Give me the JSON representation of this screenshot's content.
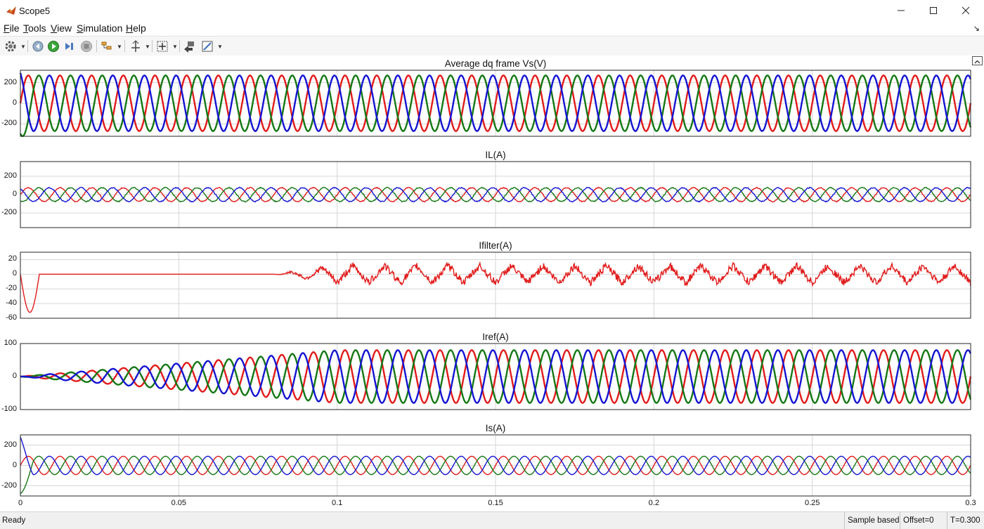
{
  "window": {
    "title": "Scope5"
  },
  "menu": [
    {
      "u": "F",
      "rest": "ile"
    },
    {
      "u": "T",
      "rest": "ools"
    },
    {
      "u": "V",
      "rest": "iew"
    },
    {
      "u": "S",
      "rest": "imulation"
    },
    {
      "u": "H",
      "rest": "elp"
    }
  ],
  "toolbar": {
    "icons": [
      "settings-icon",
      "step-back-icon",
      "run-icon",
      "step-forward-icon",
      "stop-icon",
      "highlight-icon",
      "cursor-measure-icon",
      "zoom-fit-icon",
      "bring-to-front-icon",
      "style-icon"
    ]
  },
  "axes": [
    {
      "title": "Average dq frame    Vs(V)",
      "yticks": [
        "200",
        "0",
        "-200"
      ],
      "ylim": [
        -320,
        320
      ],
      "tickvals": [
        200,
        0,
        -200
      ]
    },
    {
      "title": "IL(A)",
      "yticks": [
        "200",
        "0",
        "-200"
      ],
      "ylim": [
        -360,
        360
      ],
      "tickvals": [
        200,
        0,
        -200
      ]
    },
    {
      "title": "Ifilter(A)",
      "yticks": [
        "20",
        "0",
        "-20",
        "-40",
        "-60"
      ],
      "ylim": [
        -60,
        30
      ],
      "tickvals": [
        20,
        0,
        -20,
        -40,
        -60
      ]
    },
    {
      "title": "Iref(A)",
      "yticks": [
        "100",
        "0",
        "-100"
      ],
      "ylim": [
        -100,
        100
      ],
      "tickvals": [
        100,
        0,
        -100
      ]
    },
    {
      "title": "Is(A)",
      "yticks": [
        "200",
        "0",
        "-200"
      ],
      "ylim": [
        -300,
        300
      ],
      "tickvals": [
        200,
        0,
        -200
      ]
    }
  ],
  "xaxis": {
    "ticks": [
      "0",
      "0.05",
      "0.1",
      "0.15",
      "0.2",
      "0.25",
      "0.3"
    ],
    "tickvals": [
      0,
      0.05,
      0.1,
      0.15,
      0.2,
      0.25,
      0.3
    ],
    "xlim": [
      0,
      0.3
    ]
  },
  "chart_data": [
    {
      "type": "line",
      "title": "Average dq frame    Vs(V)",
      "x_range": [
        0,
        0.3
      ],
      "ylim": [
        -320,
        320
      ],
      "series": [
        {
          "color": "#e11b1b",
          "amplitude": 270,
          "frequency_hz": 100,
          "phase_deg": 0
        },
        {
          "color": "#147814",
          "amplitude": 270,
          "frequency_hz": 100,
          "phase_deg": -120
        },
        {
          "color": "#1414d2",
          "amplitude": 270,
          "frequency_hz": 100,
          "phase_deg": 120
        }
      ]
    },
    {
      "type": "line",
      "title": "IL(A)",
      "x_range": [
        0,
        0.3
      ],
      "ylim": [
        -360,
        360
      ],
      "series": [
        {
          "color": "#e11b1b",
          "amplitude": 75,
          "frequency_hz": 100,
          "phase_deg": 0
        },
        {
          "color": "#147814",
          "amplitude": 75,
          "frequency_hz": 100,
          "phase_deg": -120
        },
        {
          "color": "#1414d2",
          "amplitude": 75,
          "frequency_hz": 100,
          "phase_deg": 120
        }
      ]
    },
    {
      "type": "line",
      "title": "Ifilter(A)",
      "x_range": [
        0,
        0.3
      ],
      "ylim": [
        -60,
        30
      ],
      "series": [
        {
          "color": "#e11b1b",
          "transient_min": -52,
          "active_from_x": 0.08,
          "steady_amplitude": 18
        }
      ]
    },
    {
      "type": "line",
      "title": "Iref(A)",
      "x_range": [
        0,
        0.3
      ],
      "ylim": [
        -100,
        100
      ],
      "series": [
        {
          "color": "#e11b1b",
          "amplitude": 80,
          "frequency_hz": 100,
          "phase_deg": 0,
          "rise_to_x": 0.1
        },
        {
          "color": "#147814",
          "amplitude": 80,
          "frequency_hz": 100,
          "phase_deg": -120,
          "rise_to_x": 0.1
        },
        {
          "color": "#1414d2",
          "amplitude": 80,
          "frequency_hz": 100,
          "phase_deg": 120,
          "rise_to_x": 0.1
        }
      ]
    },
    {
      "type": "line",
      "title": "Is(A)",
      "x_range": [
        0,
        0.3
      ],
      "ylim": [
        -300,
        300
      ],
      "series": [
        {
          "color": "#e11b1b",
          "amplitude": 90,
          "frequency_hz": 100,
          "phase_deg": 0
        },
        {
          "color": "#147814",
          "amplitude": 90,
          "frequency_hz": 100,
          "phase_deg": -120
        },
        {
          "color": "#1414d2",
          "amplitude": 90,
          "frequency_hz": 100,
          "phase_deg": 120
        }
      ]
    }
  ],
  "status": {
    "left": "Ready",
    "mode": "Sample based",
    "offset": "Offset=0",
    "time": "T=0.300"
  }
}
